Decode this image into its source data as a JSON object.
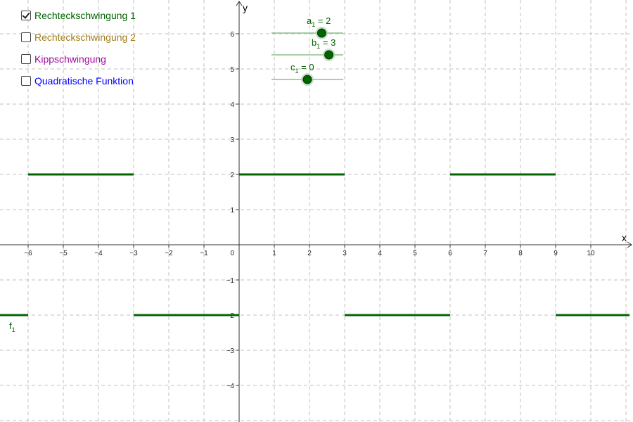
{
  "checkboxes": [
    {
      "label": "Rechteckschwingung 1",
      "checked": true,
      "color": "#006400"
    },
    {
      "label": "Rechteckschwingung 2",
      "checked": false,
      "color": "#a07f1a"
    },
    {
      "label": "Kippschwingung",
      "checked": false,
      "color": "#a00aa0"
    },
    {
      "label": "Quadratische Funktion",
      "checked": false,
      "color": "#0000ff"
    }
  ],
  "axes": {
    "x_label": "x",
    "y_label": "y",
    "x_range": [
      -6.8,
      11.1
    ],
    "y_range": [
      -5,
      6.9
    ],
    "x_ticks": [
      -6,
      -5,
      -4,
      -3,
      -2,
      -1,
      1,
      2,
      3,
      4,
      5,
      6,
      7,
      8,
      9,
      10
    ],
    "x_tick_labels": [
      "−6",
      "−5",
      "−4",
      "−3",
      "−2",
      "−1",
      "1",
      "2",
      "3",
      "4",
      "5",
      "6",
      "7",
      "8",
      "9",
      "10"
    ],
    "y_ticks": [
      -4,
      -3,
      -2,
      -1,
      1,
      2,
      3,
      4,
      5,
      6
    ],
    "y_tick_labels": [
      "−4",
      "−3",
      "−2",
      "−1",
      "1",
      "2",
      "3",
      "4",
      "5",
      "6"
    ],
    "origin_label": "0",
    "grid": true,
    "grid_color": "#c0c0c0"
  },
  "sliders": [
    {
      "name": "a",
      "sub": "1",
      "text": " = 2",
      "value": 2,
      "range": [
        -5,
        5
      ]
    },
    {
      "name": "b",
      "sub": "1",
      "text": " = 3",
      "value": 3,
      "range": [
        -5,
        5
      ]
    },
    {
      "name": "c",
      "sub": "1",
      "text": " = 0",
      "value": 0,
      "range": [
        -5,
        5
      ]
    }
  ],
  "slider_color": "#006400",
  "function": {
    "name": "f",
    "sub": "1",
    "color": "#006400",
    "amplitude": 2,
    "half_period": 3,
    "segments": [
      {
        "x": [
          -6.8,
          -6
        ],
        "y": -2
      },
      {
        "x": [
          -6,
          -3
        ],
        "y": 2
      },
      {
        "x": [
          -3,
          0
        ],
        "y": -2
      },
      {
        "x": [
          0,
          3
        ],
        "y": 2
      },
      {
        "x": [
          3,
          6
        ],
        "y": -2
      },
      {
        "x": [
          6,
          9
        ],
        "y": 2
      },
      {
        "x": [
          9,
          11.1
        ],
        "y": -2
      }
    ]
  }
}
